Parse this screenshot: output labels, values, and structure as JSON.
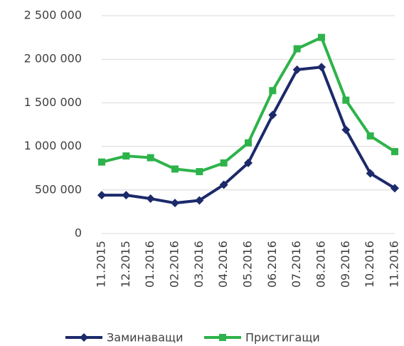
{
  "chart_data": {
    "type": "line",
    "categories": [
      "11.2015",
      "12.2015",
      "01.2016",
      "02.2016",
      "03.2016",
      "04.2016",
      "05.2016",
      "06.2016",
      "07.2016",
      "08.2016",
      "09.2016",
      "10.2016",
      "11.2016"
    ],
    "series": [
      {
        "name": "Заминаващи",
        "color": "#1c2a6b",
        "marker": "diamond",
        "values": [
          440000,
          440000,
          400000,
          350000,
          380000,
          560000,
          810000,
          1360000,
          1880000,
          1910000,
          1190000,
          690000,
          520000
        ]
      },
      {
        "name": "Пристигащи",
        "color": "#2db34a",
        "marker": "square",
        "values": [
          820000,
          890000,
          870000,
          740000,
          710000,
          810000,
          1040000,
          1640000,
          2120000,
          2250000,
          1530000,
          1120000,
          940000
        ]
      }
    ],
    "ylim": [
      0,
      2500000
    ],
    "yticks": [
      0,
      {
        "value": 500000,
        "label": "500 000"
      },
      {
        "value": 1000000,
        "label": "1 000 000"
      },
      {
        "value": 1500000,
        "label": "1 500 000"
      },
      {
        "value": 2000000,
        "label": "2 000 000"
      },
      {
        "value": 2500000,
        "label": "2 500 000"
      }
    ],
    "grid": true,
    "legend": "bottom"
  }
}
